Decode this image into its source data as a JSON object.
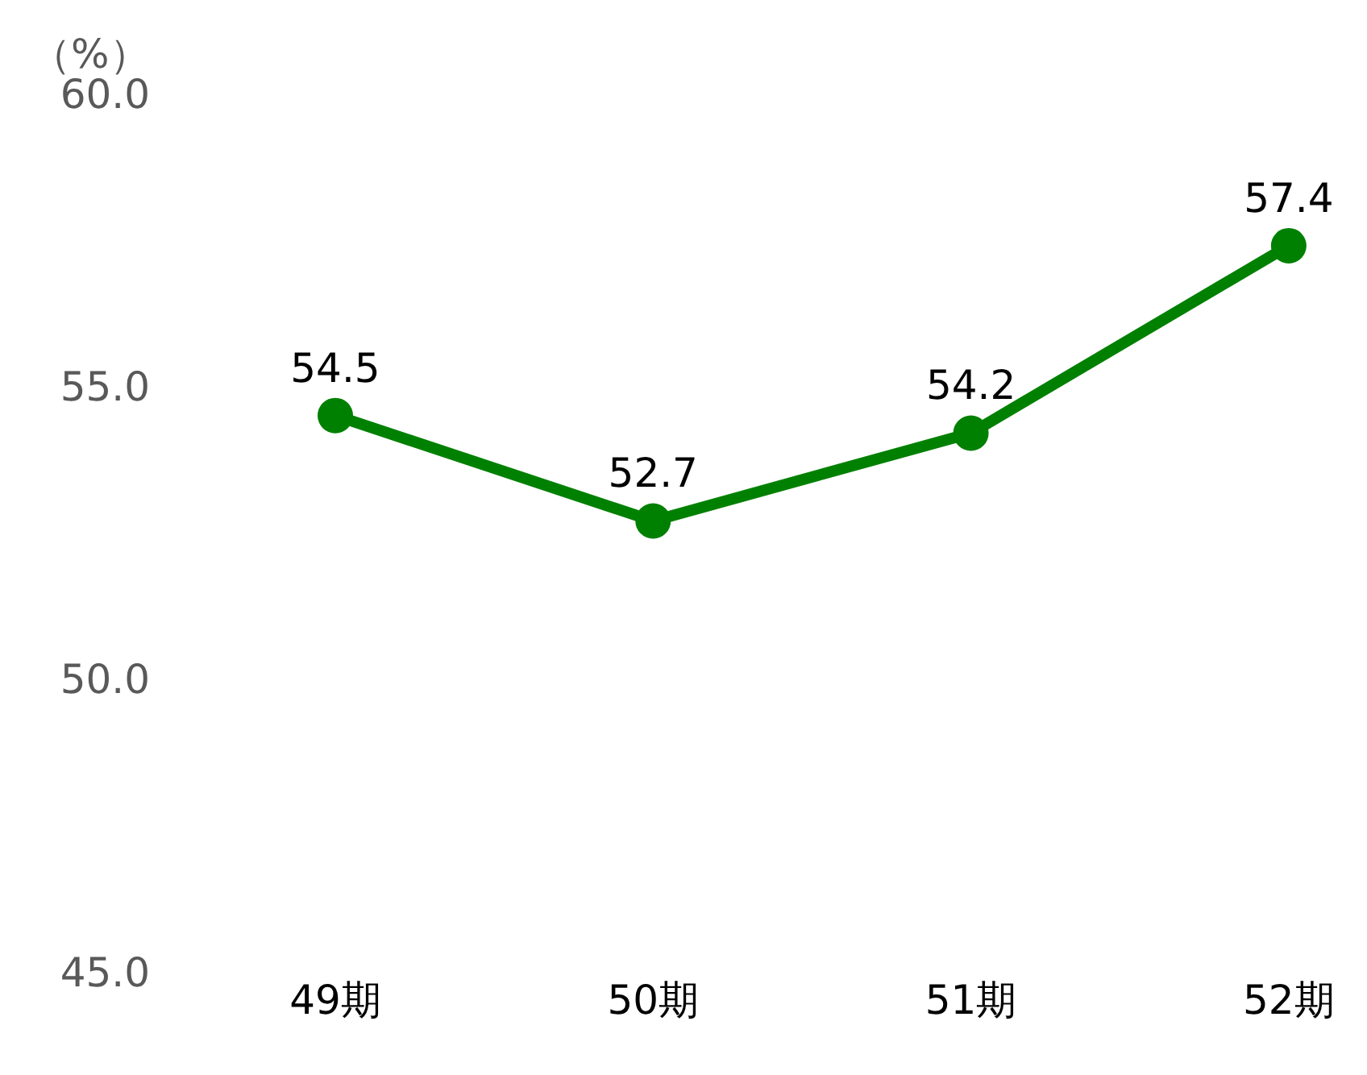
{
  "chart_data": {
    "type": "line",
    "ylabel": "（%）",
    "categories": [
      "49期",
      "50期",
      "51期",
      "52期"
    ],
    "series": [
      {
        "color": "#008000",
        "values": [
          54.5,
          52.7,
          54.2,
          57.4
        ]
      }
    ],
    "ylim": [
      45,
      60
    ],
    "yticks": [
      {
        "value": 45,
        "label": "45.0"
      },
      {
        "value": 50,
        "label": "50.0"
      },
      {
        "value": 55,
        "label": "55.0"
      },
      {
        "value": 60,
        "label": "60.0"
      }
    ],
    "legend": false,
    "marker": "circle",
    "line_style": "solid",
    "data_labels": true
  }
}
